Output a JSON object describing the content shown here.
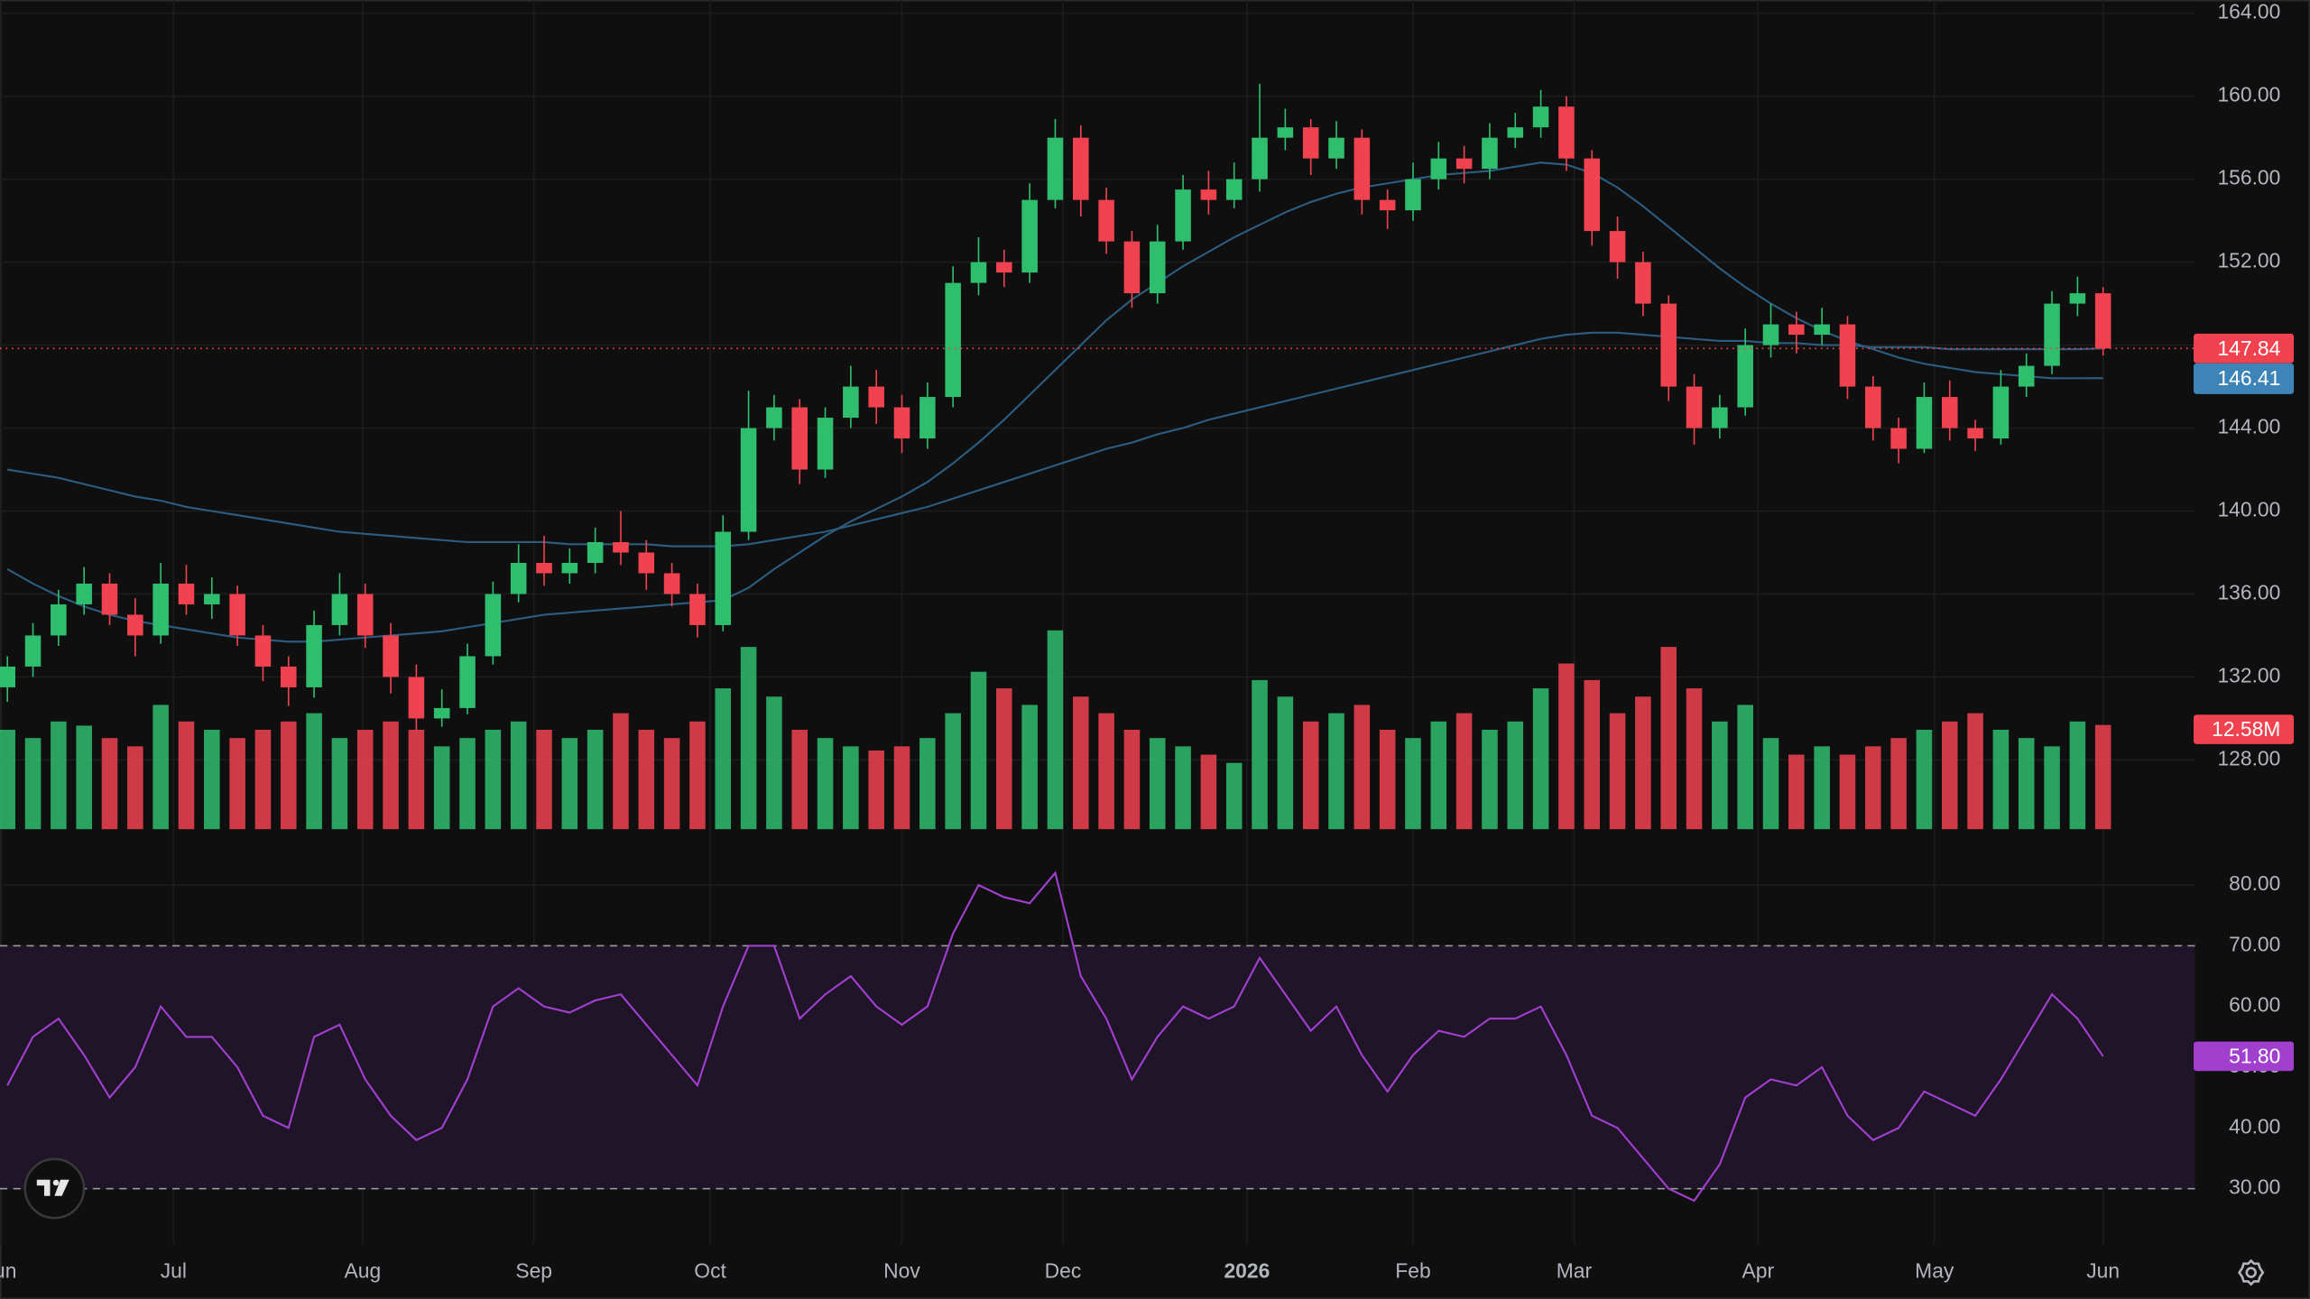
{
  "chart_data": {
    "type": "candlestick",
    "colors": {
      "up": "#2fbd6e",
      "down": "#f0424f",
      "background": "#0f0f0f",
      "grid": "#1c1c1c",
      "ma_label": "#3d84b8"
    },
    "grid": true,
    "last_price_line": true,
    "xlim": [
      -0.29,
      85.6
    ],
    "xticks": [
      {
        "value": -0.29,
        "label": "Jun"
      },
      {
        "value": 6.5,
        "label": "Jul"
      },
      {
        "value": 13.9,
        "label": "Aug"
      },
      {
        "value": 20.6,
        "label": "Sep"
      },
      {
        "value": 27.5,
        "label": "Oct"
      },
      {
        "value": 35.0,
        "label": "Nov"
      },
      {
        "value": 41.3,
        "label": "Dec"
      },
      {
        "value": 48.5,
        "label": "2026"
      },
      {
        "value": 55.0,
        "label": "Feb"
      },
      {
        "value": 61.3,
        "label": "Mar"
      },
      {
        "value": 68.5,
        "label": "Apr"
      },
      {
        "value": 75.4,
        "label": "May"
      },
      {
        "value": 82.0,
        "label": "Jun"
      }
    ],
    "ylim": [
      124.66,
      164.64
    ],
    "yticks": [
      {
        "value": 128,
        "label": "128.00"
      },
      {
        "value": 132,
        "label": "132.00"
      },
      {
        "value": 136,
        "label": "136.00"
      },
      {
        "value": 140,
        "label": "140.00"
      },
      {
        "value": 144,
        "label": "144.00"
      },
      {
        "value": 148,
        "label": "148.00"
      },
      {
        "value": 152,
        "label": "152.00"
      },
      {
        "value": 156,
        "label": "156.00"
      },
      {
        "value": 160,
        "label": "160.00"
      },
      {
        "value": 164,
        "label": "164.00"
      }
    ],
    "candles": [
      [
        131.5,
        133,
        130.8,
        132.5
      ],
      [
        132.5,
        134.6,
        132,
        134
      ],
      [
        134,
        136.2,
        133.5,
        135.5
      ],
      [
        135.5,
        137.3,
        135,
        136.5
      ],
      [
        136.5,
        137,
        134.5,
        135
      ],
      [
        135,
        135.8,
        133,
        134
      ],
      [
        134,
        137.5,
        133.6,
        136.5
      ],
      [
        136.5,
        137.4,
        135,
        135.5
      ],
      [
        135.5,
        136.8,
        134.8,
        136
      ],
      [
        136,
        136.4,
        133.5,
        134
      ],
      [
        134,
        134.5,
        131.8,
        132.5
      ],
      [
        132.5,
        133,
        130.6,
        131.5
      ],
      [
        131.5,
        135.2,
        131,
        134.5
      ],
      [
        134.5,
        137,
        134,
        136
      ],
      [
        136,
        136.5,
        133.4,
        134
      ],
      [
        134,
        134.6,
        131.2,
        132
      ],
      [
        132,
        132.6,
        129.4,
        130
      ],
      [
        130,
        131.4,
        129.6,
        130.5
      ],
      [
        130.5,
        133.6,
        130.2,
        133
      ],
      [
        133,
        136.6,
        132.6,
        136
      ],
      [
        136,
        138.4,
        135.6,
        137.5
      ],
      [
        137.5,
        138.8,
        136.4,
        137
      ],
      [
        137,
        138.2,
        136.5,
        137.5
      ],
      [
        137.5,
        139.2,
        137,
        138.5
      ],
      [
        138.5,
        140,
        137.4,
        138
      ],
      [
        138,
        138.6,
        136.2,
        137
      ],
      [
        137,
        137.5,
        135.4,
        136
      ],
      [
        136,
        136.5,
        133.9,
        134.5
      ],
      [
        134.5,
        139.8,
        134.2,
        139
      ],
      [
        139,
        145.8,
        138.6,
        144
      ],
      [
        144,
        145.6,
        143.4,
        145
      ],
      [
        145,
        145.4,
        141.3,
        142
      ],
      [
        142,
        145,
        141.6,
        144.5
      ],
      [
        144.5,
        147,
        144,
        146
      ],
      [
        146,
        146.8,
        144.2,
        145
      ],
      [
        145,
        145.6,
        142.8,
        143.5
      ],
      [
        143.5,
        146.2,
        143,
        145.5
      ],
      [
        145.5,
        151.8,
        145,
        151
      ],
      [
        151,
        153.2,
        150.4,
        152
      ],
      [
        152,
        152.6,
        150.8,
        151.5
      ],
      [
        151.5,
        155.8,
        151,
        155
      ],
      [
        155,
        158.9,
        154.6,
        158
      ],
      [
        158,
        158.6,
        154.2,
        155
      ],
      [
        155,
        155.6,
        152.4,
        153
      ],
      [
        153,
        153.5,
        149.8,
        150.5
      ],
      [
        150.5,
        153.8,
        150,
        153
      ],
      [
        153,
        156.2,
        152.6,
        155.5
      ],
      [
        155.5,
        156.4,
        154.3,
        155
      ],
      [
        155,
        156.8,
        154.6,
        156
      ],
      [
        156,
        160.6,
        155.4,
        158
      ],
      [
        158,
        159.4,
        157.4,
        158.5
      ],
      [
        158.5,
        158.9,
        156.2,
        157
      ],
      [
        157,
        158.8,
        156.5,
        158
      ],
      [
        158,
        158.4,
        154.3,
        155
      ],
      [
        155,
        155.5,
        153.6,
        154.5
      ],
      [
        154.5,
        156.8,
        154,
        156
      ],
      [
        156,
        157.8,
        155.5,
        157
      ],
      [
        157,
        157.6,
        155.8,
        156.5
      ],
      [
        156.5,
        158.7,
        156,
        158
      ],
      [
        158,
        159.2,
        157.5,
        158.5
      ],
      [
        158.5,
        160.3,
        158,
        159.5
      ],
      [
        159.5,
        160,
        156.4,
        157
      ],
      [
        157,
        157.4,
        152.8,
        153.5
      ],
      [
        153.5,
        154.2,
        151.2,
        152
      ],
      [
        152,
        152.5,
        149.4,
        150
      ],
      [
        150,
        150.4,
        145.3,
        146
      ],
      [
        146,
        146.6,
        143.2,
        144
      ],
      [
        144,
        145.6,
        143.5,
        145
      ],
      [
        145,
        148.8,
        144.6,
        148
      ],
      [
        148,
        150,
        147.4,
        149
      ],
      [
        149,
        149.6,
        147.6,
        148.5
      ],
      [
        148.5,
        149.8,
        148,
        149
      ],
      [
        149,
        149.4,
        145.4,
        146
      ],
      [
        146,
        146.5,
        143.4,
        144
      ],
      [
        144,
        144.5,
        142.3,
        143
      ],
      [
        143,
        146.2,
        142.8,
        145.5
      ],
      [
        145.5,
        146.3,
        143.4,
        144
      ],
      [
        144,
        144.4,
        142.9,
        143.5
      ],
      [
        143.5,
        146.8,
        143.2,
        146
      ],
      [
        146,
        147.6,
        145.5,
        147
      ],
      [
        147,
        150.6,
        146.6,
        150
      ],
      [
        150,
        151.3,
        149.4,
        150.5
      ],
      [
        150.5,
        150.8,
        147.5,
        147.84
      ]
    ],
    "ma": [
      {
        "color": "#2c5d80",
        "values": [
          142,
          141.8,
          141.6,
          141.3,
          141,
          140.7,
          140.5,
          140.2,
          140,
          139.8,
          139.6,
          139.4,
          139.2,
          139,
          138.9,
          138.8,
          138.7,
          138.6,
          138.5,
          138.5,
          138.5,
          138.5,
          138.4,
          138.4,
          138.4,
          138.4,
          138.3,
          138.3,
          138.3,
          138.4,
          138.6,
          138.8,
          139,
          139.3,
          139.6,
          139.9,
          140.2,
          140.6,
          141,
          141.4,
          141.8,
          142.2,
          142.6,
          143,
          143.3,
          143.7,
          144,
          144.4,
          144.7,
          145,
          145.3,
          145.6,
          145.9,
          146.2,
          146.5,
          146.8,
          147.1,
          147.4,
          147.7,
          148,
          148.3,
          148.5,
          148.6,
          148.6,
          148.5,
          148.4,
          148.3,
          148.2,
          148.2,
          148.1,
          148.1,
          148,
          148,
          147.9,
          147.9,
          147.9,
          147.8,
          147.8,
          147.8,
          147.8,
          147.8,
          147.8,
          147.84
        ]
      },
      {
        "color": "#2c5d80",
        "values": [
          137.2,
          136.5,
          135.9,
          135.4,
          135,
          134.7,
          134.5,
          134.3,
          134.1,
          133.9,
          133.8,
          133.7,
          133.7,
          133.8,
          133.9,
          134,
          134.1,
          134.2,
          134.4,
          134.6,
          134.8,
          135,
          135.1,
          135.2,
          135.3,
          135.4,
          135.5,
          135.6,
          135.7,
          136.3,
          137.2,
          138,
          138.8,
          139.5,
          140.1,
          140.7,
          141.4,
          142.3,
          143.3,
          144.4,
          145.6,
          146.8,
          148,
          149.2,
          150.2,
          151,
          151.8,
          152.5,
          153.2,
          153.8,
          154.4,
          154.9,
          155.3,
          155.6,
          155.8,
          156,
          156.2,
          156.3,
          156.4,
          156.6,
          156.8,
          156.7,
          156.3,
          155.6,
          154.7,
          153.7,
          152.7,
          151.7,
          150.8,
          150,
          149.3,
          148.7,
          148.2,
          147.8,
          147.4,
          147.1,
          146.9,
          146.7,
          146.6,
          146.5,
          146.4,
          146.4,
          146.41
        ]
      }
    ],
    "volume": {
      "values": [
        12,
        11,
        13,
        12.5,
        11,
        10,
        15,
        13,
        12,
        11,
        12,
        13,
        14,
        11,
        12,
        13,
        12,
        10,
        11,
        12,
        13,
        12,
        11,
        12,
        14,
        12,
        11,
        13,
        17,
        22,
        16,
        12,
        11,
        10,
        9.5,
        10,
        11,
        14,
        19,
        17,
        15,
        24,
        16,
        14,
        12,
        11,
        10,
        9,
        8,
        18,
        16,
        13,
        14,
        15,
        12,
        11,
        13,
        14,
        12,
        13,
        17,
        20,
        18,
        14,
        16,
        22,
        17,
        13,
        15,
        11,
        9,
        10,
        9,
        10,
        11,
        12,
        13,
        14,
        12,
        11,
        10,
        13,
        12.58
      ],
      "last_label": "12.58M"
    },
    "rsi": {
      "color": "#a13fcf",
      "band_fill": "#1f1428",
      "values": [
        47,
        55,
        58,
        52,
        45,
        50,
        60,
        55,
        55,
        50,
        42,
        40,
        55,
        57,
        48,
        42,
        38,
        40,
        48,
        60,
        63,
        60,
        59,
        61,
        62,
        57,
        52,
        47,
        60,
        70,
        70,
        58,
        62,
        65,
        60,
        57,
        60,
        72,
        80,
        78,
        77,
        82,
        65,
        58,
        48,
        55,
        60,
        58,
        60,
        68,
        62,
        56,
        60,
        52,
        46,
        52,
        56,
        55,
        58,
        58,
        60,
        52,
        42,
        40,
        35,
        30,
        28,
        34,
        45,
        48,
        47,
        50,
        42,
        38,
        40,
        46,
        44,
        42,
        48,
        55,
        62,
        58,
        51.8
      ],
      "last_label": "51.80",
      "ylim": [
        20.8,
        89.2
      ],
      "yticks": [
        {
          "value": 30,
          "label": "30.00"
        },
        {
          "value": 40,
          "label": "40.00"
        },
        {
          "value": 50,
          "label": "50.00"
        },
        {
          "value": 60,
          "label": "60.00"
        },
        {
          "value": 70,
          "label": "70.00"
        },
        {
          "value": 80,
          "label": "80.00"
        }
      ],
      "bands": [
        30,
        70
      ]
    }
  }
}
